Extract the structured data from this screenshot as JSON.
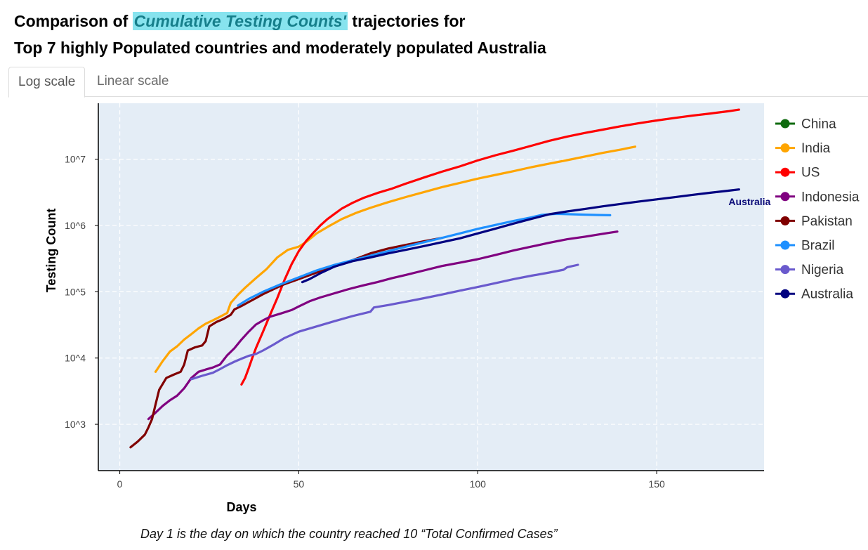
{
  "title": {
    "prefix": "Comparison of ",
    "highlight": "Cumulative Testing Counts'",
    "suffix": " trajectories for",
    "line2": "Top 7 highly Populated countries and moderately populated Australia"
  },
  "tabs": [
    {
      "label": "Log scale",
      "active": true
    },
    {
      "label": "Linear scale",
      "active": false
    }
  ],
  "caption": "Day 1 is the day on which the country reached 10 “Total Confirmed Cases”",
  "chart_data": {
    "type": "line",
    "xlabel": "Days",
    "ylabel": "Testing Count",
    "x_ticks": [
      0,
      50,
      100,
      150
    ],
    "y_scale": "log",
    "y_ticks": [
      {
        "value": 1000,
        "label": "10^3"
      },
      {
        "value": 10000,
        "label": "10^4"
      },
      {
        "value": 100000,
        "label": "10^5"
      },
      {
        "value": 1000000,
        "label": "10^6"
      },
      {
        "value": 10000000,
        "label": "10^7"
      }
    ],
    "xlim": [
      -6,
      180
    ],
    "ylim": [
      200,
      70000000
    ],
    "grid": true,
    "legend_position": "right",
    "annotation": {
      "text": "Australia",
      "x": 174,
      "y": 2300000,
      "color": "#0a0a78"
    },
    "series": [
      {
        "name": "China",
        "color": "#0f6b0f",
        "points": []
      },
      {
        "name": "India",
        "color": "#ffa500",
        "points": [
          [
            10,
            6200
          ],
          [
            12,
            9000
          ],
          [
            14,
            12500
          ],
          [
            16,
            15000
          ],
          [
            18,
            19000
          ],
          [
            20,
            23000
          ],
          [
            22,
            28000
          ],
          [
            24,
            33000
          ],
          [
            26,
            37000
          ],
          [
            28,
            42000
          ],
          [
            30,
            48000
          ],
          [
            31,
            68000
          ],
          [
            33,
            90000
          ],
          [
            35,
            115000
          ],
          [
            38,
            160000
          ],
          [
            41,
            220000
          ],
          [
            44,
            330000
          ],
          [
            47,
            430000
          ],
          [
            50,
            480000
          ],
          [
            52,
            560000
          ],
          [
            55,
            760000
          ],
          [
            58,
            950000
          ],
          [
            62,
            1250000
          ],
          [
            66,
            1550000
          ],
          [
            70,
            1850000
          ],
          [
            75,
            2250000
          ],
          [
            80,
            2700000
          ],
          [
            85,
            3200000
          ],
          [
            90,
            3800000
          ],
          [
            95,
            4400000
          ],
          [
            100,
            5100000
          ],
          [
            105,
            5800000
          ],
          [
            110,
            6600000
          ],
          [
            115,
            7600000
          ],
          [
            120,
            8600000
          ],
          [
            125,
            9700000
          ],
          [
            130,
            11000000
          ],
          [
            135,
            12500000
          ],
          [
            140,
            14000000
          ],
          [
            144,
            15500000
          ]
        ]
      },
      {
        "name": "US",
        "color": "#ff0000",
        "points": [
          [
            34,
            4000
          ],
          [
            35,
            5000
          ],
          [
            36,
            7000
          ],
          [
            37,
            10000
          ],
          [
            38,
            14000
          ],
          [
            40,
            25000
          ],
          [
            42,
            45000
          ],
          [
            44,
            80000
          ],
          [
            46,
            150000
          ],
          [
            48,
            260000
          ],
          [
            50,
            410000
          ],
          [
            52,
            580000
          ],
          [
            54,
            770000
          ],
          [
            56,
            1000000
          ],
          [
            58,
            1250000
          ],
          [
            60,
            1500000
          ],
          [
            62,
            1800000
          ],
          [
            65,
            2200000
          ],
          [
            68,
            2600000
          ],
          [
            72,
            3100000
          ],
          [
            76,
            3600000
          ],
          [
            80,
            4300000
          ],
          [
            85,
            5300000
          ],
          [
            90,
            6500000
          ],
          [
            95,
            7800000
          ],
          [
            100,
            9600000
          ],
          [
            105,
            11500000
          ],
          [
            110,
            13500000
          ],
          [
            115,
            16000000
          ],
          [
            120,
            19000000
          ],
          [
            125,
            22000000
          ],
          [
            130,
            25000000
          ],
          [
            135,
            28000000
          ],
          [
            140,
            31500000
          ],
          [
            145,
            35000000
          ],
          [
            150,
            38500000
          ],
          [
            155,
            42000000
          ],
          [
            160,
            45500000
          ],
          [
            165,
            49000000
          ],
          [
            170,
            53000000
          ],
          [
            173,
            56000000
          ]
        ]
      },
      {
        "name": "Indonesia",
        "color": "#800080",
        "points": [
          [
            8,
            1200
          ],
          [
            10,
            1500
          ],
          [
            12,
            1900
          ],
          [
            14,
            2300
          ],
          [
            16,
            2700
          ],
          [
            18,
            3500
          ],
          [
            20,
            5000
          ],
          [
            22,
            6200
          ],
          [
            24,
            6700
          ],
          [
            26,
            7200
          ],
          [
            28,
            8000
          ],
          [
            30,
            11000
          ],
          [
            32,
            14000
          ],
          [
            34,
            19000
          ],
          [
            36,
            25000
          ],
          [
            38,
            32000
          ],
          [
            40,
            37000
          ],
          [
            42,
            42000
          ],
          [
            45,
            47000
          ],
          [
            48,
            53000
          ],
          [
            50,
            60000
          ],
          [
            53,
            72000
          ],
          [
            56,
            82000
          ],
          [
            60,
            95000
          ],
          [
            64,
            110000
          ],
          [
            68,
            125000
          ],
          [
            72,
            140000
          ],
          [
            76,
            160000
          ],
          [
            80,
            180000
          ],
          [
            85,
            210000
          ],
          [
            90,
            245000
          ],
          [
            95,
            275000
          ],
          [
            100,
            310000
          ],
          [
            105,
            360000
          ],
          [
            110,
            420000
          ],
          [
            115,
            480000
          ],
          [
            120,
            550000
          ],
          [
            125,
            620000
          ],
          [
            130,
            680000
          ],
          [
            135,
            750000
          ],
          [
            139,
            810000
          ]
        ]
      },
      {
        "name": "Pakistan",
        "color": "#800000",
        "points": [
          [
            3,
            450
          ],
          [
            5,
            550
          ],
          [
            7,
            700
          ],
          [
            8,
            900
          ],
          [
            9,
            1200
          ],
          [
            10,
            2000
          ],
          [
            11,
            3300
          ],
          [
            13,
            5000
          ],
          [
            15,
            5600
          ],
          [
            17,
            6200
          ],
          [
            18,
            8000
          ],
          [
            19,
            13000
          ],
          [
            21,
            14500
          ],
          [
            23,
            15500
          ],
          [
            24,
            18000
          ],
          [
            25,
            30000
          ],
          [
            27,
            35000
          ],
          [
            29,
            39000
          ],
          [
            31,
            45000
          ],
          [
            32,
            54000
          ],
          [
            34,
            61000
          ],
          [
            36,
            70000
          ],
          [
            38,
            80000
          ],
          [
            40,
            92000
          ],
          [
            43,
            110000
          ],
          [
            46,
            130000
          ],
          [
            50,
            155000
          ],
          [
            55,
            195000
          ],
          [
            60,
            240000
          ],
          [
            65,
            300000
          ],
          [
            70,
            380000
          ],
          [
            75,
            450000
          ],
          [
            80,
            510000
          ],
          [
            85,
            580000
          ],
          [
            90,
            650000
          ]
        ]
      },
      {
        "name": "Brazil",
        "color": "#1e90ff",
        "points": [
          [
            33,
            62000
          ],
          [
            36,
            78000
          ],
          [
            40,
            100000
          ],
          [
            45,
            130000
          ],
          [
            50,
            165000
          ],
          [
            55,
            210000
          ],
          [
            60,
            255000
          ],
          [
            65,
            300000
          ],
          [
            70,
            350000
          ],
          [
            75,
            410000
          ],
          [
            80,
            480000
          ],
          [
            85,
            560000
          ],
          [
            90,
            650000
          ],
          [
            95,
            760000
          ],
          [
            100,
            890000
          ],
          [
            105,
            1020000
          ],
          [
            110,
            1170000
          ],
          [
            115,
            1330000
          ],
          [
            118,
            1450000
          ],
          [
            122,
            1500000
          ],
          [
            126,
            1480000
          ],
          [
            130,
            1460000
          ],
          [
            134,
            1440000
          ],
          [
            137,
            1430000
          ]
        ]
      },
      {
        "name": "Nigeria",
        "color": "#6a5acd",
        "points": [
          [
            20,
            4800
          ],
          [
            23,
            5400
          ],
          [
            26,
            6000
          ],
          [
            28,
            6800
          ],
          [
            30,
            7800
          ],
          [
            32,
            8800
          ],
          [
            34,
            9800
          ],
          [
            36,
            10800
          ],
          [
            38,
            11500
          ],
          [
            40,
            13000
          ],
          [
            43,
            16000
          ],
          [
            46,
            20000
          ],
          [
            50,
            25000
          ],
          [
            55,
            30000
          ],
          [
            60,
            36000
          ],
          [
            65,
            43000
          ],
          [
            70,
            50000
          ],
          [
            71,
            58000
          ],
          [
            75,
            63000
          ],
          [
            80,
            71000
          ],
          [
            85,
            80000
          ],
          [
            90,
            91000
          ],
          [
            95,
            104000
          ],
          [
            100,
            118000
          ],
          [
            105,
            135000
          ],
          [
            110,
            155000
          ],
          [
            115,
            175000
          ],
          [
            120,
            195000
          ],
          [
            124,
            215000
          ],
          [
            125,
            235000
          ],
          [
            128,
            255000
          ]
        ]
      },
      {
        "name": "Australia",
        "color": "#000080",
        "points": [
          [
            51,
            140000
          ],
          [
            53,
            155000
          ],
          [
            56,
            190000
          ],
          [
            60,
            240000
          ],
          [
            65,
            290000
          ],
          [
            70,
            330000
          ],
          [
            75,
            380000
          ],
          [
            80,
            430000
          ],
          [
            85,
            490000
          ],
          [
            90,
            560000
          ],
          [
            95,
            640000
          ],
          [
            100,
            760000
          ],
          [
            105,
            900000
          ],
          [
            110,
            1070000
          ],
          [
            115,
            1260000
          ],
          [
            120,
            1480000
          ],
          [
            125,
            1630000
          ],
          [
            130,
            1780000
          ],
          [
            135,
            1950000
          ],
          [
            140,
            2120000
          ],
          [
            145,
            2300000
          ],
          [
            150,
            2480000
          ],
          [
            155,
            2680000
          ],
          [
            160,
            2900000
          ],
          [
            165,
            3120000
          ],
          [
            170,
            3350000
          ],
          [
            173,
            3500000
          ]
        ]
      }
    ]
  }
}
